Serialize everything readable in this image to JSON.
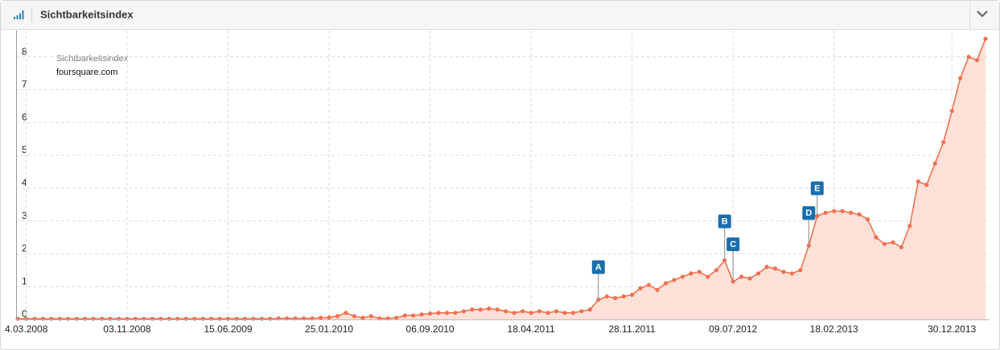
{
  "header": {
    "title": "Sichtbarkeitsindex"
  },
  "chart_data": {
    "type": "line",
    "legend_title": "Sichtbarkeitsindex",
    "categories": [
      null,
      "4.03.2008",
      null,
      null,
      null,
      null,
      null,
      null,
      null,
      null,
      null,
      null,
      null,
      "03.11.2008",
      null,
      null,
      null,
      null,
      null,
      null,
      null,
      null,
      null,
      null,
      null,
      "15.06.2009",
      null,
      null,
      null,
      null,
      null,
      null,
      null,
      null,
      null,
      null,
      null,
      "25.01.2010",
      null,
      null,
      null,
      null,
      null,
      null,
      null,
      null,
      null,
      null,
      null,
      "06.09.2010",
      null,
      null,
      null,
      null,
      null,
      null,
      null,
      null,
      null,
      null,
      null,
      "18.04.2011",
      null,
      null,
      null,
      null,
      null,
      null,
      null,
      null,
      null,
      null,
      null,
      "28.11.2011",
      null,
      null,
      null,
      null,
      null,
      null,
      null,
      null,
      null,
      null,
      null,
      "09.07.2012",
      null,
      null,
      null,
      null,
      null,
      null,
      null,
      null,
      null,
      null,
      null,
      "18.02.2013",
      null,
      null,
      null,
      null,
      null,
      null,
      null,
      null,
      null,
      null,
      null,
      null,
      null,
      "30.12.2013",
      null,
      null,
      null,
      null
    ],
    "series": [
      {
        "name": "foursquare.com",
        "color": "#f0714f",
        "fill": "#fde0d8",
        "values": [
          0.02,
          0.02,
          0.02,
          0.02,
          0.02,
          0.02,
          0.02,
          0.02,
          0.02,
          0.02,
          0.02,
          0.02,
          0.02,
          0.02,
          0.02,
          0.02,
          0.02,
          0.02,
          0.02,
          0.02,
          0.02,
          0.02,
          0.02,
          0.02,
          0.02,
          0.02,
          0.02,
          0.02,
          0.02,
          0.02,
          0.02,
          0.03,
          0.03,
          0.03,
          0.03,
          0.03,
          0.05,
          0.06,
          0.1,
          0.2,
          0.1,
          0.05,
          0.1,
          0.03,
          0.03,
          0.05,
          0.12,
          0.12,
          0.15,
          0.18,
          0.2,
          0.2,
          0.2,
          0.25,
          0.3,
          0.3,
          0.33,
          0.3,
          0.25,
          0.2,
          0.25,
          0.2,
          0.25,
          0.2,
          0.25,
          0.2,
          0.2,
          0.25,
          0.3,
          0.6,
          0.7,
          0.65,
          0.7,
          0.75,
          0.95,
          1.05,
          0.9,
          1.1,
          1.2,
          1.3,
          1.4,
          1.45,
          1.3,
          1.5,
          1.8,
          1.15,
          1.3,
          1.25,
          1.4,
          1.6,
          1.55,
          1.45,
          1.4,
          1.5,
          2.25,
          3.15,
          3.25,
          3.3,
          3.3,
          3.25,
          3.2,
          3.05,
          2.5,
          2.3,
          2.35,
          2.2,
          2.85,
          4.2,
          4.1,
          4.75,
          5.4,
          6.35,
          7.35,
          8.0,
          7.9,
          8.55
        ]
      }
    ],
    "events": [
      {
        "label": "A",
        "x": 69
      },
      {
        "label": "B",
        "x": 84
      },
      {
        "label": "C",
        "x": 85
      },
      {
        "label": "D",
        "x": 94
      },
      {
        "label": "E",
        "x": 95
      }
    ],
    "ylim": [
      0,
      8.8
    ],
    "yticks": [
      0,
      1,
      2,
      3,
      4,
      5,
      6,
      7,
      8
    ],
    "grid": true,
    "event_color": "#1b6eae"
  }
}
